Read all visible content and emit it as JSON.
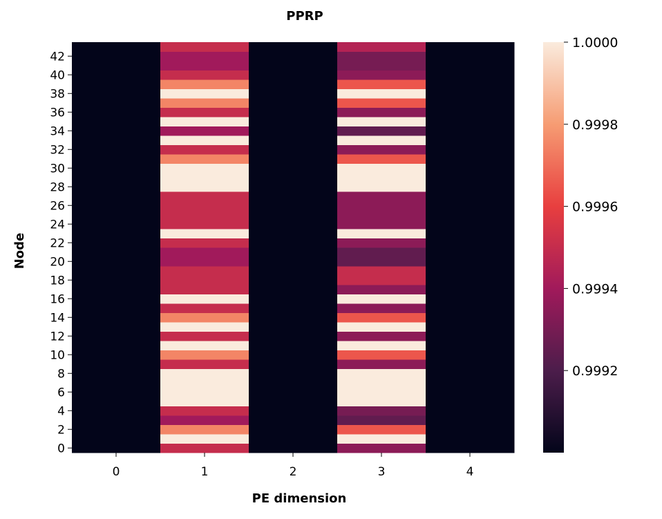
{
  "chart_data": {
    "type": "heatmap",
    "title": "PPRP",
    "xlabel": "PE dimension",
    "ylabel": "Node",
    "x_categories": [
      "0",
      "1",
      "2",
      "3",
      "4"
    ],
    "y_tick_labels": [
      "0",
      "2",
      "4",
      "6",
      "8",
      "10",
      "12",
      "14",
      "16",
      "18",
      "20",
      "22",
      "24",
      "26",
      "28",
      "30",
      "32",
      "34",
      "36",
      "38",
      "40",
      "42"
    ],
    "colormap": "rocket",
    "vmin": 0.999,
    "vmax": 1.0,
    "colorbar_ticks": [
      {
        "value": 1.0,
        "label": "1.0000"
      },
      {
        "value": 0.9998,
        "label": "0.9998"
      },
      {
        "value": 0.9996,
        "label": "0.9996"
      },
      {
        "value": 0.9994,
        "label": "0.9994"
      },
      {
        "value": 0.9992,
        "label": "0.9992"
      }
    ],
    "rows_node_0_to_43": {
      "col_0": "all 0.9990 (minimum)",
      "col_2": "all 0.9990 (minimum)",
      "col_4": "all 0.9990 (minimum)",
      "col_1": [
        0.9995,
        1.0,
        0.99975,
        0.9994,
        0.9995,
        1.0,
        1.0,
        1.0,
        1.0,
        0.9995,
        0.99975,
        1.0,
        0.9995,
        1.0,
        0.99975,
        0.9995,
        1.0,
        0.9995,
        0.9995,
        0.9995,
        0.9994,
        0.9994,
        0.9995,
        1.0,
        0.9995,
        0.9995,
        0.9995,
        0.9995,
        1.0,
        1.0,
        1.0,
        0.99975,
        0.9995,
        1.0,
        0.9994,
        1.0,
        0.9995,
        0.99975,
        1.0,
        0.99975,
        0.9995,
        0.9994,
        0.9994,
        0.9995
      ],
      "col_3": [
        0.99935,
        1.0,
        0.99965,
        0.99925,
        0.9993,
        1.0,
        1.0,
        1.0,
        1.0,
        0.99935,
        0.99965,
        1.0,
        0.99935,
        1.0,
        0.99965,
        0.99935,
        1.0,
        0.99935,
        0.9995,
        0.9995,
        0.99925,
        0.99925,
        0.99935,
        1.0,
        0.99935,
        0.99935,
        0.99935,
        0.99935,
        1.0,
        1.0,
        1.0,
        0.99965,
        0.99935,
        1.0,
        0.99925,
        1.0,
        0.99935,
        0.99965,
        1.0,
        0.99965,
        0.99935,
        0.9993,
        0.9993,
        0.99945
      ]
    },
    "grid": false,
    "legend": "colorbar on right"
  }
}
